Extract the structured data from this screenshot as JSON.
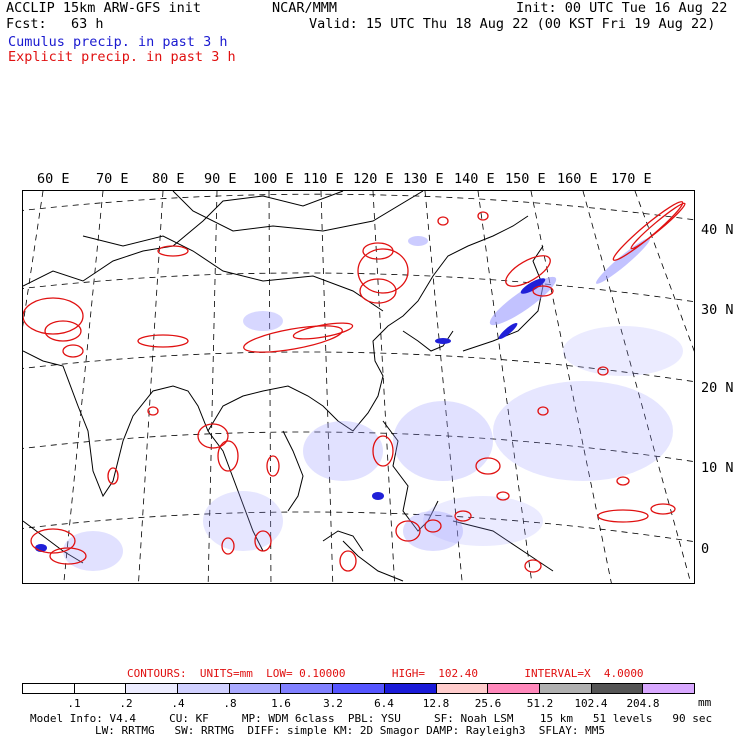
{
  "header": {
    "title_left": "ACCLIP 15km ARW-GFS init",
    "forecast": "Fcst:   63 h",
    "center": "NCAR/MMM",
    "init": "Init: 00 UTC Tue 16 Aug 22",
    "valid": "Valid: 15 UTC Thu 18 Aug 22 (00 KST Fri 19 Aug 22)",
    "legend_cumulus": "Cumulus precip. in past 3 h",
    "legend_explicit": "Explicit precip. in past 3 h",
    "cumulus_color": "#1a1ad0",
    "explicit_color": "#e01010"
  },
  "map": {
    "lon_labels": [
      "60 E",
      "70 E",
      "80 E",
      "90 E",
      "100 E",
      "110 E",
      "120 E",
      "130 E",
      "140 E",
      "150 E",
      "160 E",
      "170 E"
    ],
    "lat_labels": [
      "40 N",
      "30 N",
      "20 N",
      "10 N",
      "0"
    ]
  },
  "contours": {
    "label": "CONTOURS:  UNITS=mm  LOW= 0.10000       HIGH=  102.40       INTERVAL=X  4.0000"
  },
  "colorbar": {
    "labels": [
      ".1",
      ".2",
      ".4",
      ".8",
      "1.6",
      "3.2",
      "6.4",
      "12.8",
      "25.6",
      "51.2",
      "102.4",
      "204.8"
    ],
    "unit": "mm",
    "colors": [
      "#ffffff",
      "#ffffff",
      "#ececff",
      "#d0d0ff",
      "#aaaaff",
      "#8080ff",
      "#5555ff",
      "#1a1ad8",
      "#ffcccc",
      "#ff88bb",
      "#b0b0b0",
      "#555555",
      "#d8a8ff"
    ]
  },
  "model_info": {
    "line1": "Model Info: V4.4     CU: KF     MP: WDM 6class  PBL: YSU     SF: Noah LSM    15 km   51 levels   90 sec",
    "line2": "LW: RRTMG   SW: RRTMG  DIFF: simple KM: 2D Smagor DAMP: Rayleigh3  SFLAY: MM5"
  }
}
